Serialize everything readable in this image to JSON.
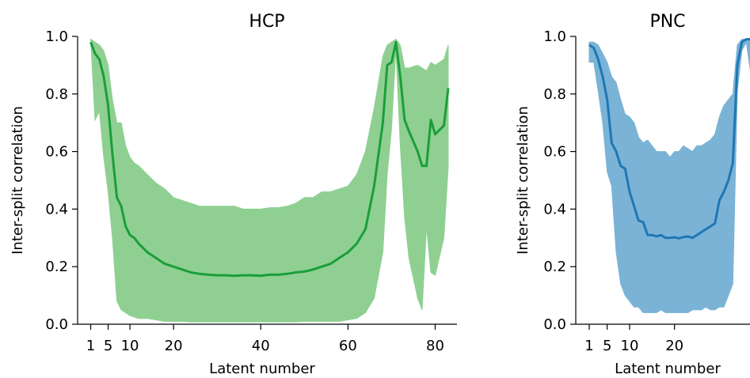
{
  "chart_data": [
    {
      "type": "line",
      "title": "HCP",
      "xlabel": "Latent number",
      "ylabel": "Inter-split correlation",
      "xlim": [
        -2,
        85
      ],
      "ylim": [
        0,
        1
      ],
      "xticks": [
        1,
        5,
        10,
        20,
        40,
        60,
        80
      ],
      "yticks": [
        0.0,
        0.2,
        0.4,
        0.6,
        0.8,
        1.0
      ],
      "ytick_labels": [
        "0.0",
        "0.2",
        "0.4",
        "0.6",
        "0.8",
        "1.0"
      ],
      "line_color": "#1a9e3a",
      "band_color": "#8fd092",
      "grid": false,
      "series": [
        {
          "x": [
            1,
            2,
            3,
            4,
            5,
            6,
            7,
            8,
            9,
            10,
            11,
            12,
            14,
            16,
            18,
            20,
            22,
            24,
            26,
            28,
            30,
            32,
            34,
            36,
            38,
            40,
            42,
            44,
            46,
            48,
            50,
            52,
            54,
            56,
            58,
            60,
            62,
            64,
            66,
            68,
            69,
            70,
            71,
            72,
            73,
            74,
            76,
            77,
            78,
            79,
            80,
            82,
            83
          ],
          "values": [
            0.98,
            0.94,
            0.92,
            0.86,
            0.76,
            0.59,
            0.44,
            0.41,
            0.34,
            0.31,
            0.3,
            0.28,
            0.25,
            0.23,
            0.21,
            0.2,
            0.19,
            0.18,
            0.175,
            0.172,
            0.17,
            0.17,
            0.168,
            0.17,
            0.17,
            0.168,
            0.172,
            0.172,
            0.175,
            0.18,
            0.183,
            0.19,
            0.2,
            0.21,
            0.23,
            0.25,
            0.28,
            0.33,
            0.48,
            0.7,
            0.9,
            0.91,
            0.98,
            0.86,
            0.71,
            0.67,
            0.6,
            0.55,
            0.55,
            0.71,
            0.66,
            0.69,
            0.82
          ],
          "lower": [
            0.99,
            0.71,
            0.74,
            0.58,
            0.46,
            0.3,
            0.08,
            0.05,
            0.04,
            0.03,
            0.025,
            0.02,
            0.02,
            0.015,
            0.01,
            0.01,
            0.01,
            0.008,
            0.008,
            0.008,
            0.008,
            0.008,
            0.008,
            0.008,
            0.008,
            0.008,
            0.008,
            0.008,
            0.008,
            0.008,
            0.01,
            0.01,
            0.01,
            0.01,
            0.01,
            0.015,
            0.02,
            0.04,
            0.09,
            0.25,
            0.52,
            0.68,
            0.96,
            0.62,
            0.37,
            0.23,
            0.09,
            0.05,
            0.34,
            0.18,
            0.17,
            0.3,
            0.55
          ],
          "upper": [
            0.99,
            0.98,
            0.97,
            0.95,
            0.9,
            0.78,
            0.7,
            0.7,
            0.62,
            0.58,
            0.56,
            0.55,
            0.52,
            0.49,
            0.47,
            0.44,
            0.43,
            0.42,
            0.41,
            0.41,
            0.41,
            0.41,
            0.41,
            0.4,
            0.4,
            0.4,
            0.405,
            0.405,
            0.41,
            0.42,
            0.44,
            0.44,
            0.46,
            0.46,
            0.47,
            0.48,
            0.52,
            0.6,
            0.75,
            0.93,
            0.97,
            0.98,
            0.99,
            0.97,
            0.89,
            0.89,
            0.9,
            0.89,
            0.88,
            0.91,
            0.9,
            0.92,
            0.97
          ]
        }
      ]
    },
    {
      "type": "line",
      "title": "PNC",
      "xlabel": "Latent number",
      "ylabel": "Inter-split correlation",
      "xlim": [
        -2,
        40
      ],
      "ylim": [
        0,
        1
      ],
      "xticks": [
        1,
        5,
        10,
        20
      ],
      "yticks": [
        0.0,
        0.2,
        0.4,
        0.6,
        0.8,
        1.0
      ],
      "ytick_labels": [
        "0.0",
        "0.2",
        "0.4",
        "0.6",
        "0.8",
        "1.0"
      ],
      "line_color": "#1f77b4",
      "band_color": "#7ab3d6",
      "grid": false,
      "series": [
        {
          "x": [
            1,
            2,
            3,
            4,
            5,
            6,
            7,
            8,
            9,
            10,
            11,
            12,
            13,
            14,
            15,
            16,
            17,
            18,
            19,
            20,
            21,
            22,
            23,
            24,
            25,
            26,
            27,
            28,
            29,
            30,
            31,
            32,
            33,
            34,
            35,
            36,
            37,
            38,
            39
          ],
          "values": [
            0.97,
            0.96,
            0.92,
            0.86,
            0.78,
            0.63,
            0.6,
            0.55,
            0.54,
            0.46,
            0.41,
            0.36,
            0.355,
            0.31,
            0.31,
            0.305,
            0.31,
            0.3,
            0.3,
            0.302,
            0.298,
            0.303,
            0.305,
            0.3,
            0.31,
            0.32,
            0.33,
            0.34,
            0.35,
            0.43,
            0.46,
            0.5,
            0.56,
            0.9,
            0.98,
            0.99,
            0.99,
            1.0,
            1.0
          ],
          "lower": [
            0.91,
            0.91,
            0.81,
            0.7,
            0.53,
            0.48,
            0.25,
            0.14,
            0.1,
            0.08,
            0.06,
            0.06,
            0.04,
            0.04,
            0.04,
            0.04,
            0.05,
            0.04,
            0.04,
            0.04,
            0.04,
            0.04,
            0.04,
            0.05,
            0.05,
            0.05,
            0.06,
            0.05,
            0.05,
            0.06,
            0.06,
            0.1,
            0.14,
            0.81,
            0.95,
            0.98,
            0.87,
            0.87,
            0.99
          ],
          "upper": [
            0.98,
            0.98,
            0.97,
            0.94,
            0.91,
            0.86,
            0.84,
            0.78,
            0.73,
            0.72,
            0.7,
            0.65,
            0.63,
            0.64,
            0.62,
            0.6,
            0.6,
            0.6,
            0.58,
            0.6,
            0.6,
            0.62,
            0.61,
            0.6,
            0.62,
            0.62,
            0.63,
            0.64,
            0.66,
            0.72,
            0.76,
            0.78,
            0.8,
            0.97,
            0.99,
            0.99,
            0.99,
            1.0,
            1.0
          ]
        }
      ]
    }
  ]
}
